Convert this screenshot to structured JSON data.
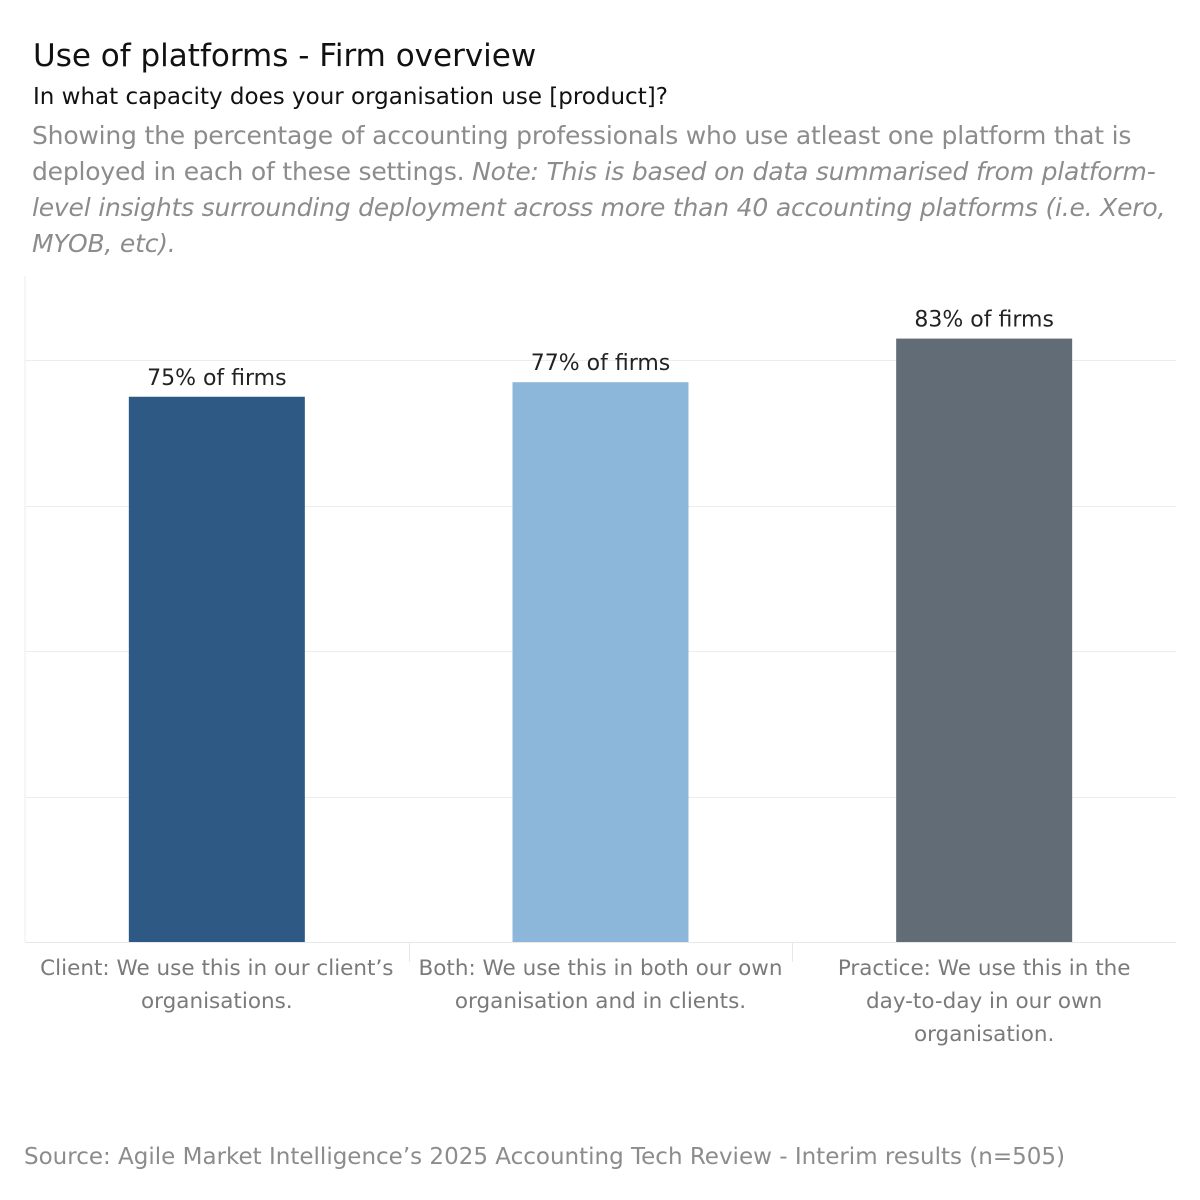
{
  "header": {
    "title": "Use of platforms - Firm overview",
    "question": "In what capacity does your organisation use [product]?",
    "description": "Showing the percentage of accounting professionals who use atleast one platform that is deployed in each of these settings.",
    "note": "Note: This is based on data summarised from platform-level insights surrounding deployment across more than 40 accounting platforms (i.e. Xero, MYOB, etc)."
  },
  "chart_data": {
    "type": "bar",
    "categories": [
      "Client: We use this in our client’s organisations.",
      "Both: We use this in both our own organisation and in clients.",
      "Practice: We use this in the day-to-day in our own organisation."
    ],
    "category_lines": [
      [
        "Client: We use this in our client’s",
        "organisations."
      ],
      [
        "Both: We use this in both our own",
        "organisation and in clients."
      ],
      [
        "Practice: We use this in the",
        "day-to-day in our own",
        "organisation."
      ]
    ],
    "values": [
      75,
      77,
      83
    ],
    "data_labels": [
      "75% of firms",
      "77% of firms",
      "83% of firms"
    ],
    "colors": [
      "#2e5984",
      "#8cb7da",
      "#626c76"
    ],
    "ylim": [
      0,
      100
    ],
    "grid": true,
    "gridline_values": [
      20,
      40,
      60,
      80
    ],
    "xlabel": "",
    "ylabel": ""
  },
  "footer": {
    "source": "Source: Agile Market Intelligence’s 2025 Accounting Tech Review - Interim results (n=505)"
  }
}
